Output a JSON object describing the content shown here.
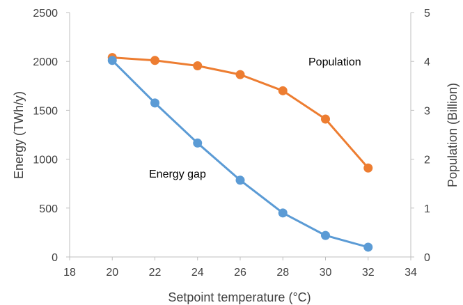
{
  "chart_data": {
    "type": "line",
    "title": "",
    "xlabel": "Setpoint temperature (°C)",
    "ylabel": "Energy (TWh/y)",
    "y2label": "Population (Billion)",
    "xlim": [
      18,
      34
    ],
    "ylim": [
      0,
      2500
    ],
    "y2lim": [
      0,
      5
    ],
    "xticks": [
      "18",
      "20",
      "22",
      "24",
      "26",
      "28",
      "30",
      "32",
      "34"
    ],
    "yticks": [
      "0",
      "500",
      "1000",
      "1500",
      "2000",
      "2500"
    ],
    "y2ticks": [
      "0",
      "1",
      "2",
      "3",
      "4",
      "5"
    ],
    "grid": false,
    "x": [
      20,
      22,
      24,
      26,
      28,
      30,
      32
    ],
    "series": [
      {
        "name": "Energy gap",
        "axis": "left",
        "color": "#5B9BD5",
        "values": [
          2010,
          1575,
          1165,
          785,
          450,
          220,
          100
        ]
      },
      {
        "name": "Population",
        "axis": "right",
        "color": "#ED7D31",
        "values": [
          4.08,
          4.02,
          3.91,
          3.73,
          3.4,
          2.82,
          1.82
        ]
      }
    ],
    "annotations": [
      "Population",
      "Energy gap"
    ]
  }
}
